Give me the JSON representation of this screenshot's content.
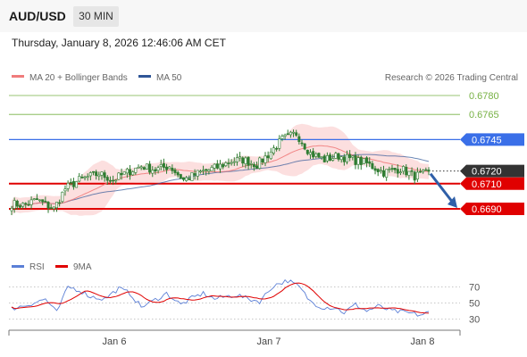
{
  "header": {
    "symbol": "AUD/USD",
    "timeframe": "30 MIN",
    "timestamp": "Thursday, January 8, 2026 12:46:06 AM CET"
  },
  "legend": {
    "ma20_label": "MA 20 + Bollinger Bands",
    "ma50_label": "MA 50",
    "copyright": "Research © 2026 Trading Central",
    "rsi_label": "RSI",
    "rsi_ma_label": "9MA"
  },
  "colors": {
    "ma20": "#f07c7c",
    "ma50": "#2f5597",
    "band_fill": "#fbd9d9",
    "candle": "#2f7d32",
    "support": "#e00000",
    "current": "#333333",
    "pivot": "#3a6fe8",
    "resistance": "#77b144",
    "arrow": "#2f5fa8",
    "rsi": "#5b7fd6"
  },
  "chart_data": [
    {
      "type": "candlestick",
      "x_ticks": [
        "Jan 6",
        "Jan 7",
        "Jan 8"
      ],
      "ylim": [
        0.6682,
        0.679
      ],
      "price_levels": [
        {
          "label": "0.6780",
          "value": 0.678,
          "kind": "resistance"
        },
        {
          "label": "0.6765",
          "value": 0.6765,
          "kind": "resistance"
        },
        {
          "label": "0.6745",
          "value": 0.6745,
          "kind": "pivot"
        },
        {
          "label": "0.6720",
          "value": 0.672,
          "kind": "current"
        },
        {
          "label": "0.6710",
          "value": 0.671,
          "kind": "support"
        },
        {
          "label": "0.6690",
          "value": 0.669,
          "kind": "support"
        }
      ],
      "arrow": {
        "from": 0.672,
        "to": 0.669
      },
      "series": [
        {
          "name": "MA 20 + Bollinger Bands",
          "kind": "ma"
        },
        {
          "name": "MA 50",
          "kind": "ma"
        }
      ],
      "price_keyframes": [
        [
          0,
          0.6694
        ],
        [
          4,
          0.6693
        ],
        [
          9,
          0.6697
        ],
        [
          15,
          0.669
        ],
        [
          19,
          0.6706
        ],
        [
          24,
          0.6713
        ],
        [
          31,
          0.6718
        ],
        [
          36,
          0.6713
        ],
        [
          41,
          0.6719
        ],
        [
          46,
          0.6724
        ],
        [
          51,
          0.6721
        ],
        [
          56,
          0.6724
        ],
        [
          61,
          0.6713
        ],
        [
          67,
          0.6719
        ],
        [
          73,
          0.6723
        ],
        [
          78,
          0.6728
        ],
        [
          82,
          0.6729
        ],
        [
          87,
          0.6725
        ],
        [
          91,
          0.6733
        ],
        [
          96,
          0.6745
        ],
        [
          101,
          0.675
        ],
        [
          106,
          0.6734
        ],
        [
          111,
          0.6729
        ],
        [
          116,
          0.6732
        ],
        [
          121,
          0.6729
        ],
        [
          126,
          0.6726
        ],
        [
          132,
          0.6719
        ],
        [
          138,
          0.6722
        ],
        [
          143,
          0.6716
        ],
        [
          148,
          0.6718
        ]
      ]
    },
    {
      "type": "line",
      "name": "RSI",
      "y_ticks": [
        70,
        50,
        30
      ],
      "ylim": [
        22,
        82
      ],
      "rsi_keyframes": [
        [
          0,
          43
        ],
        [
          6,
          48
        ],
        [
          12,
          55
        ],
        [
          16,
          38
        ],
        [
          20,
          70
        ],
        [
          24,
          66
        ],
        [
          28,
          58
        ],
        [
          33,
          55
        ],
        [
          38,
          68
        ],
        [
          42,
          62
        ],
        [
          46,
          45
        ],
        [
          50,
          52
        ],
        [
          55,
          62
        ],
        [
          60,
          48
        ],
        [
          64,
          56
        ],
        [
          68,
          62
        ],
        [
          72,
          55
        ],
        [
          76,
          58
        ],
        [
          80,
          60
        ],
        [
          84,
          55
        ],
        [
          88,
          52
        ],
        [
          93,
          72
        ],
        [
          98,
          78
        ],
        [
          102,
          70
        ],
        [
          106,
          52
        ],
        [
          110,
          45
        ],
        [
          115,
          44
        ],
        [
          118,
          38
        ],
        [
          122,
          48
        ],
        [
          126,
          40
        ],
        [
          130,
          46
        ],
        [
          135,
          40
        ],
        [
          140,
          38
        ],
        [
          145,
          35
        ],
        [
          148,
          38
        ]
      ]
    }
  ]
}
